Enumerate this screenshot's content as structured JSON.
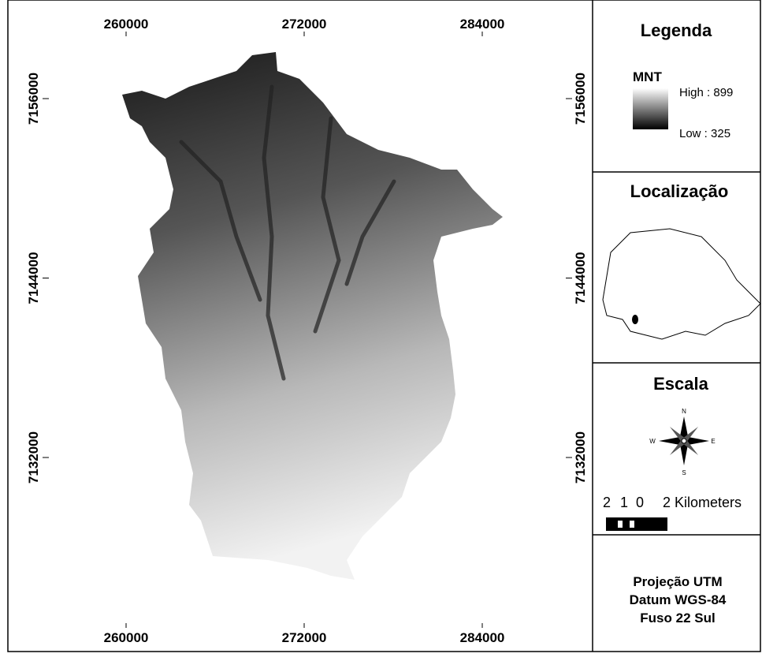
{
  "map": {
    "x_ticks": [
      260000,
      272000,
      284000
    ],
    "y_ticks": [
      7156000,
      7144000,
      7132000
    ]
  },
  "legend": {
    "title": "Legenda",
    "layer": "MNT",
    "high": "High : 899",
    "low": "Low : 325"
  },
  "location": {
    "title": "Localização"
  },
  "scale": {
    "title": "Escala",
    "compass": [
      "N",
      "S",
      "W",
      "E"
    ],
    "bar_labels": [
      "2",
      "1",
      "0",
      "2 Kilometers"
    ]
  },
  "projection": [
    "Projeção UTM",
    "Datum WGS-84",
    "Fuso 22 Sul"
  ]
}
